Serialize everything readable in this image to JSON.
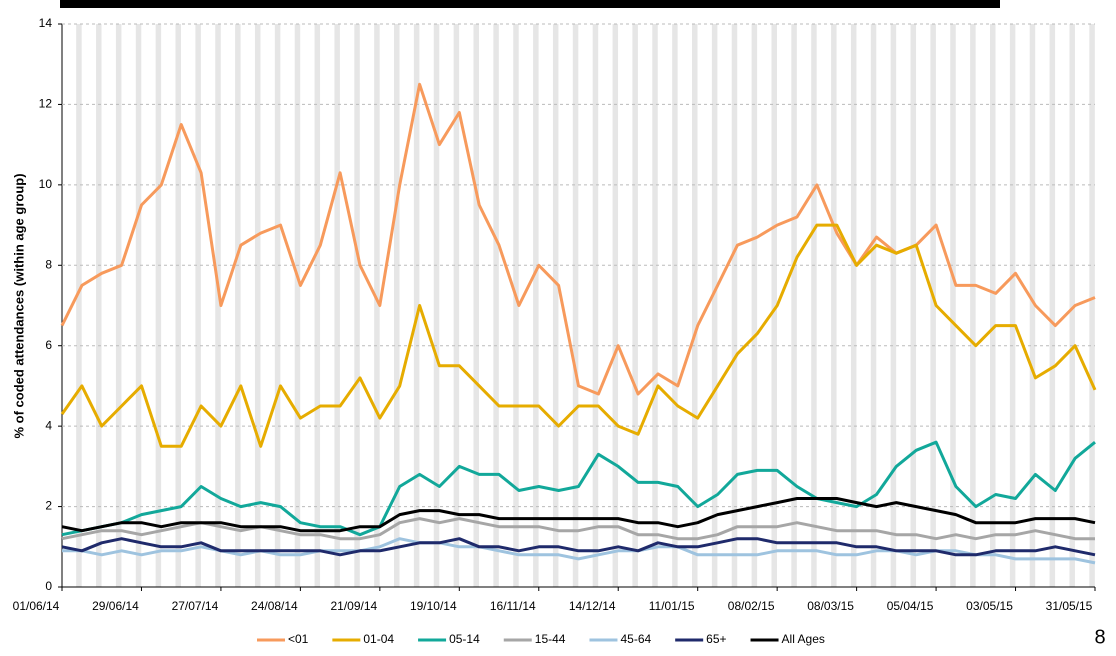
{
  "chart_data": {
    "type": "line",
    "y_label": "% of coded attendances (within age group)",
    "page_number": "8",
    "x": [
      "01/06/14",
      "08/06/14",
      "15/06/14",
      "22/06/14",
      "29/06/14",
      "06/07/14",
      "13/07/14",
      "20/07/14",
      "27/07/14",
      "03/08/14",
      "10/08/14",
      "17/08/14",
      "24/08/14",
      "31/08/14",
      "07/09/14",
      "14/09/14",
      "21/09/14",
      "28/09/14",
      "05/10/14",
      "12/10/14",
      "19/10/14",
      "26/10/14",
      "02/11/14",
      "09/11/14",
      "16/11/14",
      "23/11/14",
      "30/11/14",
      "07/12/14",
      "14/12/14",
      "21/12/14",
      "28/12/14",
      "04/01/15",
      "11/01/15",
      "18/01/15",
      "25/01/15",
      "01/02/15",
      "08/02/15",
      "15/02/15",
      "22/02/15",
      "01/03/15",
      "08/03/15",
      "15/03/15",
      "22/03/15",
      "29/03/15",
      "05/04/15",
      "12/04/15",
      "19/04/15",
      "26/04/15",
      "03/05/15",
      "10/05/15",
      "17/05/15",
      "24/05/15",
      "31/05/15"
    ],
    "xlim": [
      "01/06/14",
      "31/05/15"
    ],
    "xticks": [
      "01/06/14",
      "29/06/14",
      "27/07/14",
      "24/08/14",
      "21/09/14",
      "19/10/14",
      "16/11/14",
      "14/12/14",
      "11/01/15",
      "08/02/15",
      "08/03/15",
      "05/04/15",
      "03/05/15",
      "31/05/15"
    ],
    "ylim": [
      0,
      14
    ],
    "yticks": [
      0,
      2,
      4,
      6,
      8,
      10,
      12,
      14
    ],
    "grid": true,
    "legend": "bottom",
    "series": [
      {
        "name": "<01",
        "color": "#f79a5c",
        "values": [
          6.5,
          7.5,
          7.8,
          8.0,
          9.5,
          10.0,
          11.5,
          10.3,
          7.0,
          8.5,
          8.8,
          9.0,
          7.5,
          8.5,
          10.3,
          8.0,
          7.0,
          10.0,
          12.5,
          11.0,
          11.8,
          9.5,
          8.5,
          7.0,
          8.0,
          7.5,
          5.0,
          4.8,
          6.0,
          4.8,
          5.3,
          5.0,
          6.5,
          7.5,
          8.5,
          8.7,
          9.0,
          9.2,
          10.0,
          8.8,
          8.0,
          8.7,
          8.3,
          8.5,
          9.0,
          7.5,
          7.5,
          7.3,
          7.8,
          7.0,
          6.5,
          7.0,
          7.2
        ]
      },
      {
        "name": "01-04",
        "color": "#e6ac00",
        "values": [
          4.3,
          5.0,
          4.0,
          4.5,
          5.0,
          3.5,
          3.5,
          4.5,
          4.0,
          5.0,
          3.5,
          5.0,
          4.2,
          4.5,
          4.5,
          5.2,
          4.2,
          5.0,
          7.0,
          5.5,
          5.5,
          5.0,
          4.5,
          4.5,
          4.5,
          4.0,
          4.5,
          4.5,
          4.0,
          3.8,
          5.0,
          4.5,
          4.2,
          5.0,
          5.8,
          6.3,
          7.0,
          8.2,
          9.0,
          9.0,
          8.0,
          8.5,
          8.3,
          8.5,
          7.0,
          6.5,
          6.0,
          6.5,
          6.5,
          5.2,
          5.5,
          6.0,
          4.9
        ]
      },
      {
        "name": "05-14",
        "color": "#12a89a",
        "values": [
          1.3,
          1.4,
          1.5,
          1.6,
          1.8,
          1.9,
          2.0,
          2.5,
          2.2,
          2.0,
          2.1,
          2.0,
          1.6,
          1.5,
          1.5,
          1.3,
          1.5,
          2.5,
          2.8,
          2.5,
          3.0,
          2.8,
          2.8,
          2.4,
          2.5,
          2.4,
          2.5,
          3.3,
          3.0,
          2.6,
          2.6,
          2.5,
          2.0,
          2.3,
          2.8,
          2.9,
          2.9,
          2.5,
          2.2,
          2.1,
          2.0,
          2.3,
          3.0,
          3.4,
          3.6,
          2.5,
          2.0,
          2.3,
          2.2,
          2.8,
          2.4,
          3.2,
          3.6
        ]
      },
      {
        "name": "15-44",
        "color": "#a6a6a6",
        "values": [
          1.2,
          1.3,
          1.4,
          1.4,
          1.3,
          1.4,
          1.5,
          1.6,
          1.5,
          1.4,
          1.5,
          1.4,
          1.3,
          1.3,
          1.2,
          1.2,
          1.3,
          1.6,
          1.7,
          1.6,
          1.7,
          1.6,
          1.5,
          1.5,
          1.5,
          1.4,
          1.4,
          1.5,
          1.5,
          1.3,
          1.3,
          1.2,
          1.2,
          1.3,
          1.5,
          1.5,
          1.5,
          1.6,
          1.5,
          1.4,
          1.4,
          1.4,
          1.3,
          1.3,
          1.2,
          1.3,
          1.2,
          1.3,
          1.3,
          1.4,
          1.3,
          1.2,
          1.2
        ]
      },
      {
        "name": "45-64",
        "color": "#9ec3df",
        "values": [
          0.9,
          0.9,
          0.8,
          0.9,
          0.8,
          0.9,
          0.9,
          1.0,
          0.9,
          0.8,
          0.9,
          0.8,
          0.8,
          0.9,
          0.9,
          0.9,
          1.0,
          1.2,
          1.1,
          1.1,
          1.0,
          1.0,
          0.9,
          0.8,
          0.8,
          0.8,
          0.7,
          0.8,
          0.9,
          0.9,
          1.0,
          1.0,
          0.8,
          0.8,
          0.8,
          0.8,
          0.9,
          0.9,
          0.9,
          0.8,
          0.8,
          0.9,
          0.9,
          0.8,
          0.9,
          0.9,
          0.8,
          0.8,
          0.7,
          0.7,
          0.7,
          0.7,
          0.6
        ]
      },
      {
        "name": "65+",
        "color": "#1f2a6b",
        "values": [
          1.0,
          0.9,
          1.1,
          1.2,
          1.1,
          1.0,
          1.0,
          1.1,
          0.9,
          0.9,
          0.9,
          0.9,
          0.9,
          0.9,
          0.8,
          0.9,
          0.9,
          1.0,
          1.1,
          1.1,
          1.2,
          1.0,
          1.0,
          0.9,
          1.0,
          1.0,
          0.9,
          0.9,
          1.0,
          0.9,
          1.1,
          1.0,
          1.0,
          1.1,
          1.2,
          1.2,
          1.1,
          1.1,
          1.1,
          1.1,
          1.0,
          1.0,
          0.9,
          0.9,
          0.9,
          0.8,
          0.8,
          0.9,
          0.9,
          0.9,
          1.0,
          0.9,
          0.8
        ]
      },
      {
        "name": "All Ages",
        "color": "#000000",
        "values": [
          1.5,
          1.4,
          1.5,
          1.6,
          1.6,
          1.5,
          1.6,
          1.6,
          1.6,
          1.5,
          1.5,
          1.5,
          1.4,
          1.4,
          1.4,
          1.5,
          1.5,
          1.8,
          1.9,
          1.9,
          1.8,
          1.8,
          1.7,
          1.7,
          1.7,
          1.7,
          1.7,
          1.7,
          1.7,
          1.6,
          1.6,
          1.5,
          1.6,
          1.8,
          1.9,
          2.0,
          2.1,
          2.2,
          2.2,
          2.2,
          2.1,
          2.0,
          2.1,
          2.0,
          1.9,
          1.8,
          1.6,
          1.6,
          1.6,
          1.7,
          1.7,
          1.7,
          1.6
        ]
      }
    ]
  }
}
